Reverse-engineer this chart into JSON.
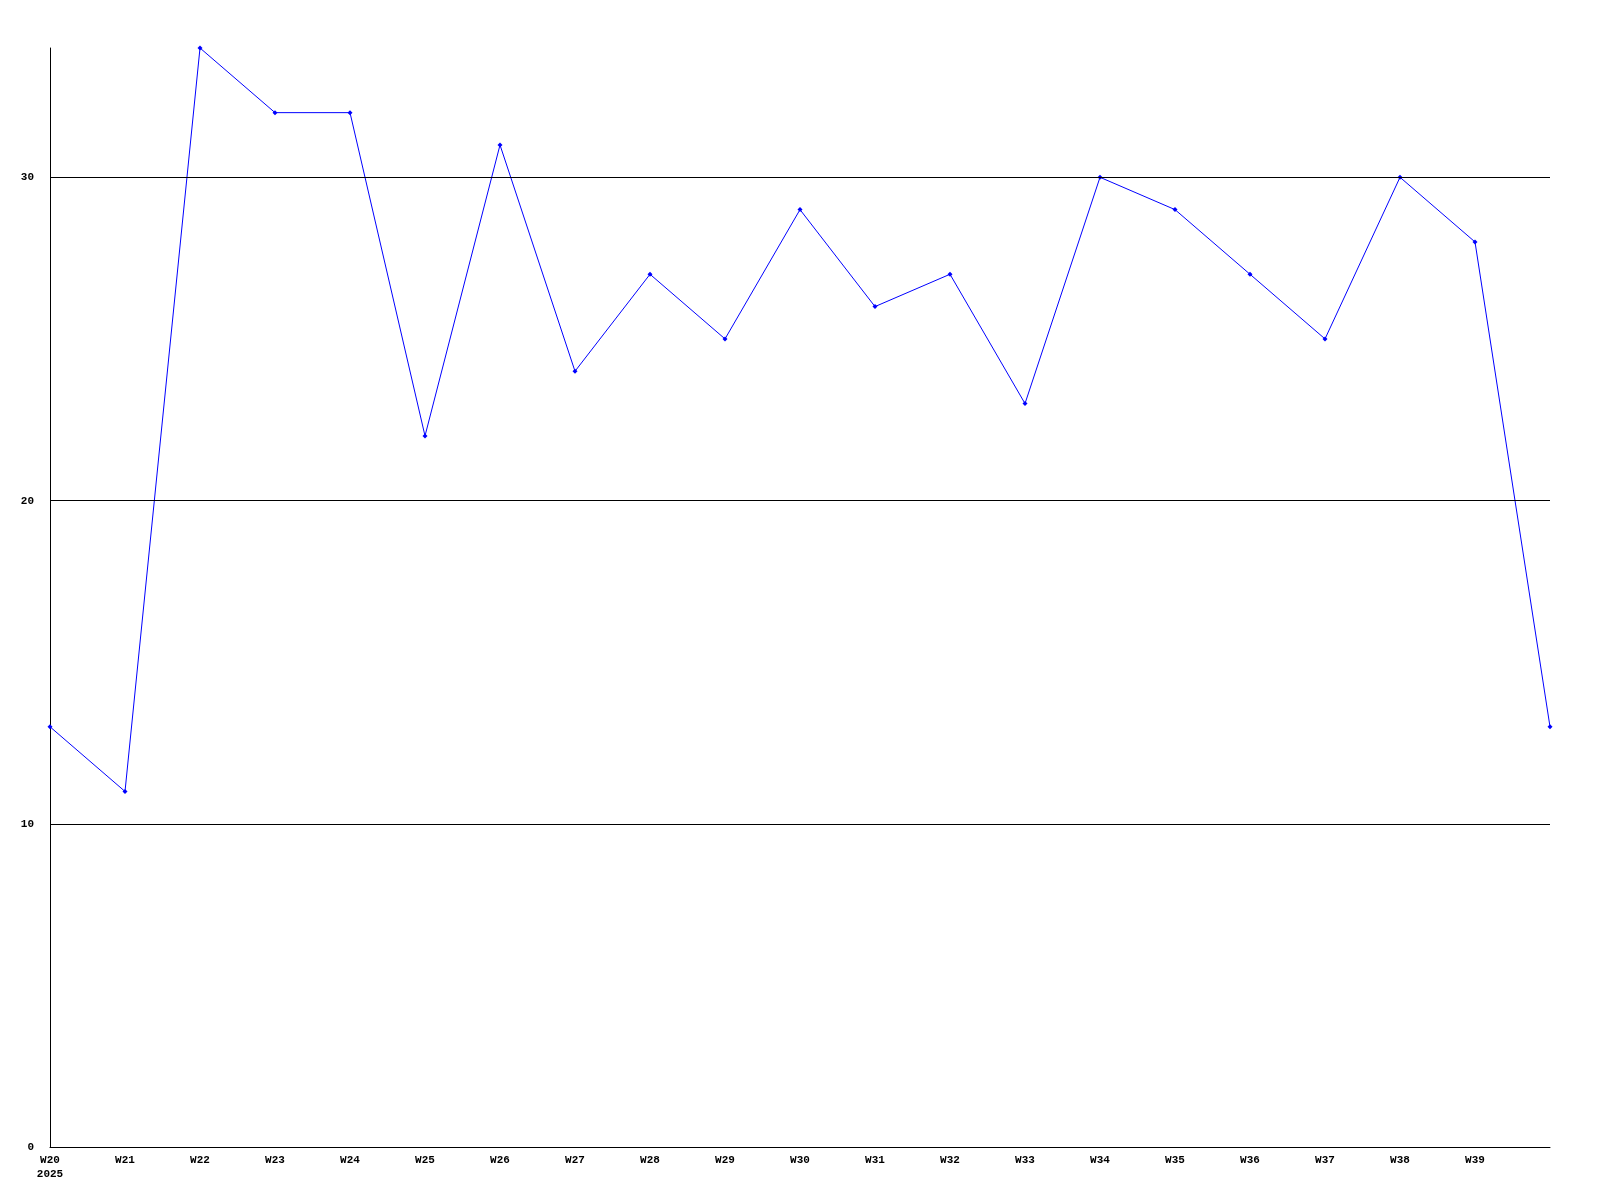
{
  "chart_data": {
    "type": "line",
    "categories": [
      "W20\n2025",
      "W21",
      "W22",
      "W23",
      "W24",
      "W25",
      "W26",
      "W27",
      "W28",
      "W29",
      "W30",
      "W31",
      "W32",
      "W33",
      "W34",
      "W35",
      "W36",
      "W37",
      "W38",
      "W39",
      null
    ],
    "series": [
      {
        "color": "#0000ff",
        "values": [
          13,
          11,
          34,
          32,
          32,
          22,
          31,
          24,
          27,
          25,
          29,
          26,
          27,
          23,
          30,
          29,
          27,
          25,
          30,
          28,
          13
        ]
      }
    ],
    "ylim": [
      0,
      34
    ],
    "yticks": [
      0,
      10,
      20,
      30
    ],
    "grid": "y",
    "marker": "diamond",
    "line_style": "solid"
  }
}
